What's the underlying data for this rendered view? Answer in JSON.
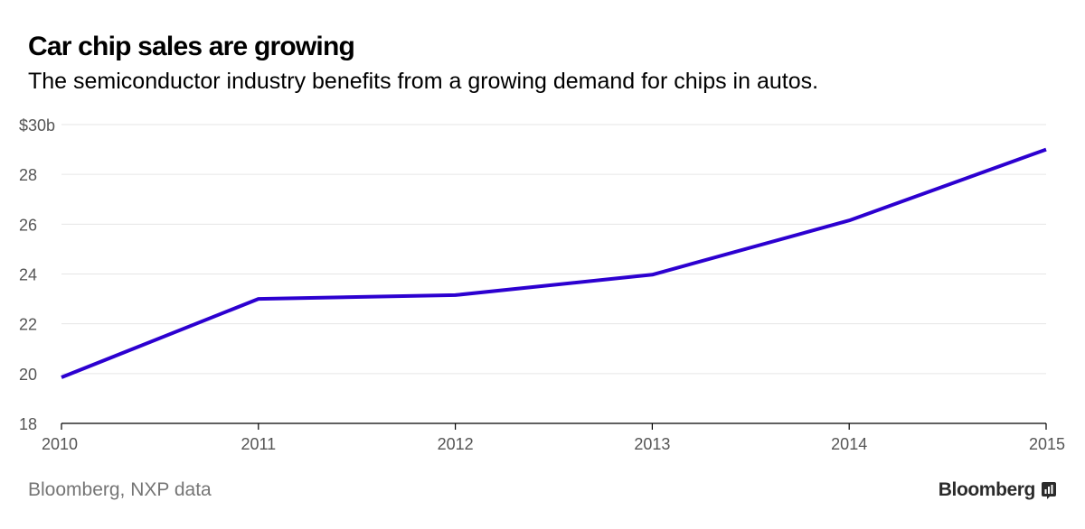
{
  "header": {
    "title": "Car chip sales are growing",
    "subtitle": "The semiconductor industry benefits from a growing demand for chips in autos."
  },
  "footer": {
    "source": "Bloomberg, NXP data",
    "brand": "Bloomberg",
    "brand_icon": "bloomberg-terminal-icon"
  },
  "chart_data": {
    "type": "line",
    "title": "Car chip sales are growing",
    "subtitle": "The semiconductor industry benefits from a growing demand for chips in autos.",
    "xlabel": "",
    "ylabel": "",
    "x": [
      "2010",
      "2011",
      "2012",
      "2013",
      "2014",
      "2015"
    ],
    "series": [
      {
        "values": [
          19.85,
          23.0,
          23.15,
          23.97,
          26.15,
          29.0
        ],
        "color": "#2c00d0"
      }
    ],
    "ylim": [
      18,
      30
    ],
    "y_ticks": [
      18,
      20,
      22,
      24,
      26,
      28,
      30
    ],
    "y_tick_labels": [
      "18",
      "20",
      "22",
      "24",
      "26",
      "28",
      "$30b"
    ],
    "grid": true,
    "legend": "none",
    "colors": {
      "line": "#2c00d0",
      "grid": "#e6e6e6",
      "axis": "#000000",
      "tick_text": "#555555"
    }
  }
}
